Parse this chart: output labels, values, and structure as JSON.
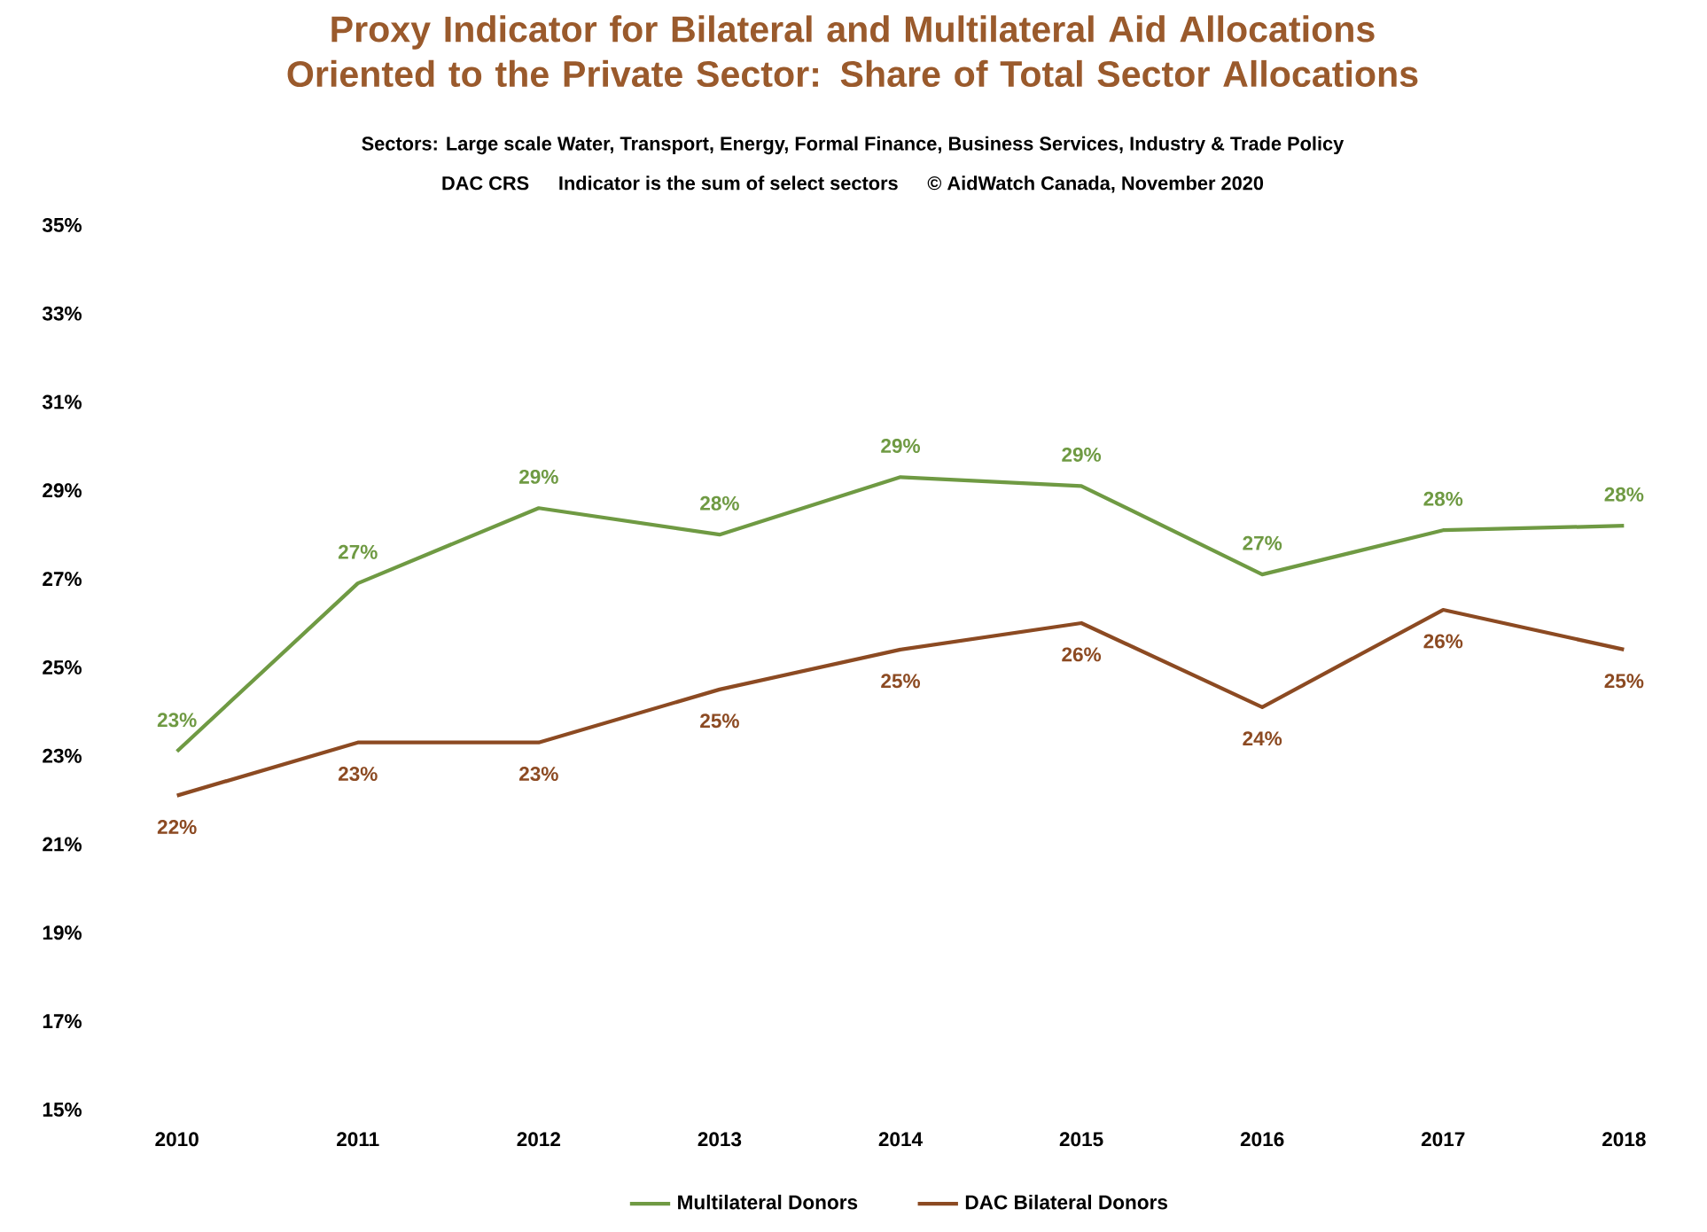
{
  "chart_data": {
    "type": "line",
    "title": "Proxy Indicator for Bilateral and Multilateral Aid Allocations Oriented to the Private Sector: Share of Total Sector Allocations",
    "subtitle": "Sectors: Large scale Water, Transport,  Energy, Formal Finance,  Business Services, Industry & Trade Policy",
    "annotations": [
      "DAC CRS",
      "Indicator is the sum of select sectors",
      "© AidWatch Canada, November 2020"
    ],
    "categories": [
      "2010",
      "2011",
      "2012",
      "2013",
      "2014",
      "2015",
      "2016",
      "2017",
      "2018"
    ],
    "series": [
      {
        "name": "Multilateral Donors",
        "color": "#6f9a43",
        "values": [
          23.1,
          26.9,
          28.6,
          28.0,
          29.3,
          29.1,
          27.1,
          28.1,
          28.2
        ],
        "value_labels": [
          "23%",
          "27%",
          "29%",
          "28%",
          "29%",
          "29%",
          "27%",
          "28%",
          "28%"
        ]
      },
      {
        "name": "DAC Bilateral Donors",
        "color": "#8c4a22",
        "values": [
          22.1,
          23.3,
          23.3,
          24.5,
          25.4,
          26.0,
          24.1,
          26.3,
          25.4
        ],
        "value_labels": [
          "22%",
          "23%",
          "23%",
          "25%",
          "25%",
          "26%",
          "24%",
          "26%",
          "25%"
        ]
      }
    ],
    "ylim": [
      15,
      35
    ],
    "yticks": [
      {
        "value": 15,
        "label": "15%"
      },
      {
        "value": 17,
        "label": "17%"
      },
      {
        "value": 19,
        "label": "19%"
      },
      {
        "value": 21,
        "label": "21%"
      },
      {
        "value": 23,
        "label": "23%"
      },
      {
        "value": 25,
        "label": "25%"
      },
      {
        "value": 27,
        "label": "27%"
      },
      {
        "value": 29,
        "label": "29%"
      },
      {
        "value": 31,
        "label": "31%"
      },
      {
        "value": 33,
        "label": "33%"
      },
      {
        "value": 35,
        "label": "35%"
      }
    ],
    "grid": false,
    "legend": "bottom",
    "marker": "none",
    "line_style": "solid"
  }
}
